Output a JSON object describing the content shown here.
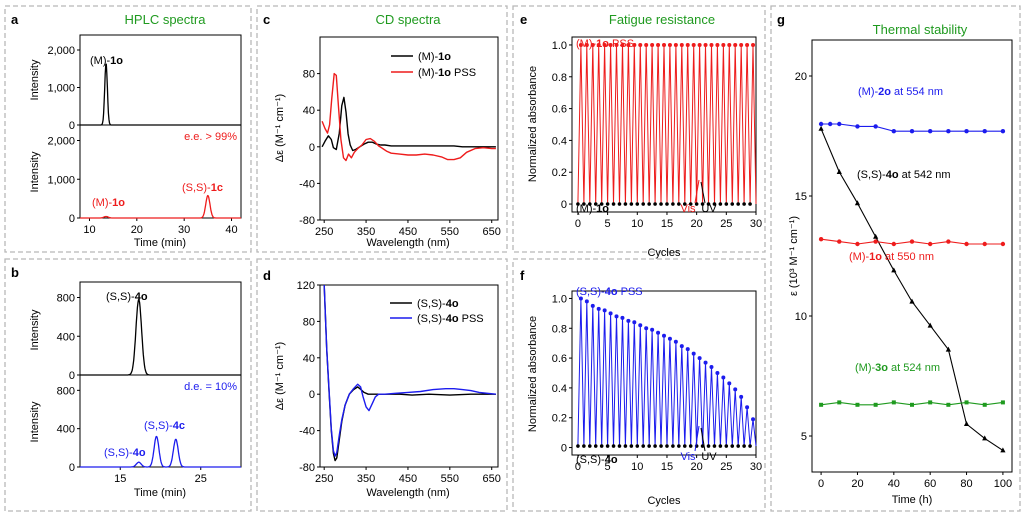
{
  "colors": {
    "black": "#000000",
    "red": "#ee1c1c",
    "blue": "#1c1cee",
    "green": "#1f9a1f"
  },
  "panels": {
    "a": {
      "label": "a",
      "title": "HPLC spectra",
      "top": {
        "ylabel": "Intensity",
        "yticks": [
          "0",
          "1,000",
          "2,000"
        ],
        "annotation": {
          "prefix": "(M)-",
          "bold": "1o"
        }
      },
      "bottom": {
        "ylabel": "Intensity",
        "yticks": [
          "0",
          "1,000",
          "2,000"
        ],
        "ee": "e.e. > 99%",
        "ann_left": {
          "prefix": "(M)-",
          "bold": "1o"
        },
        "ann_right": {
          "prefix": "(S,S)-",
          "bold": "1c"
        }
      },
      "xlabel": "Time (min)",
      "xticks": [
        "10",
        "20",
        "30",
        "40"
      ]
    },
    "b": {
      "label": "b",
      "top": {
        "ylabel": "Intensity",
        "yticks": [
          "0",
          "400",
          "800"
        ],
        "annotation": {
          "prefix": "(S,S)-",
          "bold": "4o"
        }
      },
      "bottom": {
        "ylabel": "Intensity",
        "yticks": [
          "0",
          "400",
          "800"
        ],
        "de": "d.e. = 10%",
        "ann_left": {
          "prefix": "(S,S)-",
          "bold": "4o"
        },
        "ann_right": {
          "prefix": "(S,S)-",
          "bold": "4c"
        }
      },
      "xlabel": "Time (min)",
      "xticks": [
        "15",
        "25"
      ]
    },
    "c": {
      "label": "c",
      "title": "CD spectra",
      "ylabel": "Δε (M⁻¹ cm⁻¹)",
      "xlabel": "Wavelength (nm)",
      "yticks": [
        "-80",
        "-40",
        "0",
        "40",
        "80"
      ],
      "xticks": [
        "250",
        "350",
        "450",
        "550",
        "650"
      ],
      "legend": [
        {
          "prefix": "(M)-",
          "bold": "1o",
          "suffix": ""
        },
        {
          "prefix": "(M)-",
          "bold": "1o",
          "suffix": " PSS"
        }
      ]
    },
    "d": {
      "label": "d",
      "ylabel": "Δε (M⁻¹ cm⁻¹)",
      "xlabel": "Wavelength (nm)",
      "yticks": [
        "-80",
        "-40",
        "0",
        "40",
        "80",
        "120"
      ],
      "xticks": [
        "250",
        "350",
        "450",
        "550",
        "650"
      ],
      "legend": [
        {
          "prefix": "(S,S)-",
          "bold": "4o",
          "suffix": ""
        },
        {
          "prefix": "(S,S)-",
          "bold": "4o",
          "suffix": " PSS"
        }
      ]
    },
    "e": {
      "label": "e",
      "title": "Fatigue resistance",
      "ylabel": "Normalized absorbance",
      "xlabel": "Cycles",
      "yticks": [
        "0",
        "0.2",
        "0.4",
        "0.6",
        "0.8",
        "1.0"
      ],
      "xticks": [
        "0",
        "5",
        "10",
        "15",
        "20",
        "25",
        "30"
      ],
      "ann_top": {
        "prefix": "(M)-",
        "bold": "1o",
        "suffix": " PSS"
      },
      "ann_bottom": {
        "prefix": "(M)-",
        "bold": "1o",
        "suffix": ""
      },
      "vis": "Vis",
      "uv": "UV"
    },
    "f": {
      "label": "f",
      "ylabel": "Normalized absorbance",
      "xlabel": "Cycles",
      "yticks": [
        "0",
        "0.2",
        "0.4",
        "0.6",
        "0.8",
        "1.0"
      ],
      "xticks": [
        "0",
        "5",
        "10",
        "15",
        "20",
        "25",
        "30"
      ],
      "ann_top": {
        "prefix": "(S,S)-",
        "bold": "4o",
        "suffix": " PSS"
      },
      "ann_bottom": {
        "prefix": "(S,S)-",
        "bold": "4o",
        "suffix": ""
      },
      "vis": "Vis",
      "uv": "UV"
    },
    "g": {
      "label": "g",
      "title": "Thermal stability",
      "ylabel": "ε (10³ M⁻¹ cm⁻¹)",
      "xlabel": "Time (h)",
      "yticks": [
        "5",
        "10",
        "15",
        "20"
      ],
      "xticks": [
        "0",
        "20",
        "40",
        "60",
        "80",
        "100"
      ],
      "labels": [
        {
          "prefix": "(M)-",
          "bold": "2o",
          "suffix": " at 554 nm"
        },
        {
          "prefix": "(S,S)-",
          "bold": "4o",
          "suffix": " at 542 nm"
        },
        {
          "prefix": "(M)-",
          "bold": "1o",
          "suffix": " at 550 nm"
        },
        {
          "prefix": "(M)-",
          "bold": "3o",
          "suffix": " at 524 nm"
        }
      ]
    }
  },
  "chart_data": [
    {
      "panel": "a",
      "type": "line",
      "title": "HPLC spectra",
      "xlabel": "Time (min)",
      "ylabel": "Intensity",
      "xlim": [
        8,
        42
      ],
      "ylim": [
        0,
        2400
      ],
      "series": [
        {
          "name": "(M)-1o",
          "color": "#000000",
          "peaks": [
            {
              "x": 13.5,
              "y": 1650
            }
          ]
        }
      ]
    },
    {
      "panel": "a",
      "type": "line",
      "xlabel": "Time (min)",
      "ylabel": "Intensity",
      "xlim": [
        8,
        42
      ],
      "ylim": [
        0,
        2400
      ],
      "series": [
        {
          "name": "(M)-1o",
          "color": "#ee1c1c",
          "peaks": [
            {
              "x": 13.5,
              "y": 40
            },
            {
              "x": 35.0,
              "y": 580
            }
          ]
        }
      ]
    },
    {
      "panel": "b",
      "type": "line",
      "xlabel": "Time (min)",
      "ylabel": "Intensity",
      "xlim": [
        10,
        30
      ],
      "ylim": [
        0,
        960
      ],
      "series": [
        {
          "name": "(S,S)-4o",
          "color": "#000000",
          "peaks": [
            {
              "x": 17.3,
              "y": 780
            }
          ]
        }
      ]
    },
    {
      "panel": "b",
      "type": "line",
      "xlabel": "Time (min)",
      "ylabel": "Intensity",
      "xlim": [
        10,
        30
      ],
      "ylim": [
        0,
        960
      ],
      "series": [
        {
          "name": "(S,S)-4o",
          "color": "#1c1cee",
          "peaks": [
            {
              "x": 17.3,
              "y": 50
            },
            {
              "x": 19.5,
              "y": 320
            },
            {
              "x": 21.9,
              "y": 290
            }
          ]
        }
      ]
    },
    {
      "panel": "c",
      "type": "line",
      "xlabel": "Wavelength (nm)",
      "ylabel": "Δε (M⁻¹ cm⁻¹)",
      "xlim": [
        240,
        665
      ],
      "ylim": [
        -80,
        120
      ],
      "series": [
        {
          "name": "(M)-1o",
          "color": "#000000",
          "x": [
            245,
            252,
            260,
            267,
            272,
            279,
            286,
            292,
            297,
            302,
            307,
            312,
            318,
            325,
            335,
            345,
            355,
            365,
            375,
            385,
            395,
            410,
            425,
            440,
            460,
            480,
            500,
            520,
            540,
            560,
            580,
            600,
            620,
            640,
            660
          ],
          "y": [
            0,
            6,
            12,
            8,
            -1,
            -3,
            15,
            45,
            54,
            38,
            14,
            2,
            -4,
            -3,
            0,
            3,
            5,
            5,
            3,
            2,
            2,
            1,
            1,
            1,
            1,
            1,
            1,
            1,
            1,
            1,
            0,
            0,
            0,
            0,
            0
          ]
        },
        {
          "name": "(M)-1o PSS",
          "color": "#ee1c1c",
          "x": [
            245,
            252,
            258,
            263,
            268,
            274,
            279,
            284,
            290,
            296,
            302,
            308,
            315,
            322,
            330,
            340,
            350,
            360,
            370,
            380,
            390,
            400,
            410,
            430,
            450,
            470,
            490,
            510,
            530,
            545,
            560,
            575,
            590,
            610,
            630,
            650,
            660
          ],
          "y": [
            28,
            20,
            15,
            24,
            52,
            80,
            78,
            45,
            8,
            -12,
            -15,
            -8,
            -12,
            -6,
            -2,
            2,
            8,
            9,
            6,
            1,
            -2,
            -5,
            -7,
            -8,
            -9,
            -9,
            -8,
            -9,
            -11,
            -14,
            -14,
            -12,
            -6,
            -2,
            -1,
            -2,
            -2
          ]
        }
      ]
    },
    {
      "panel": "d",
      "type": "line",
      "xlabel": "Wavelength (nm)",
      "ylabel": "Δε (M⁻¹ cm⁻¹)",
      "xlim": [
        240,
        665
      ],
      "ylim": [
        -80,
        120
      ],
      "series": [
        {
          "name": "(S,S)-4o",
          "color": "#000000",
          "x": [
            250,
            256,
            262,
            267,
            272,
            276,
            280,
            286,
            292,
            300,
            310,
            320,
            330,
            338,
            345,
            355,
            365,
            380,
            400,
            430,
            460,
            500,
            550,
            600,
            650,
            660
          ],
          "y": [
            120,
            50,
            0,
            -40,
            -65,
            -73,
            -70,
            -50,
            -30,
            -12,
            0,
            5,
            8,
            5,
            2,
            0,
            0,
            0,
            0,
            0,
            -1,
            0,
            -1,
            0,
            0,
            0
          ]
        },
        {
          "name": "(S,S)-4o PSS",
          "color": "#1c1cee",
          "x": [
            250,
            256,
            262,
            267,
            272,
            276,
            280,
            286,
            292,
            300,
            310,
            320,
            330,
            337,
            343,
            350,
            357,
            365,
            372,
            380,
            395,
            420,
            450,
            480,
            510,
            540,
            560,
            580,
            600,
            620,
            640,
            660
          ],
          "y": [
            120,
            50,
            2,
            -38,
            -62,
            -68,
            -64,
            -45,
            -28,
            -12,
            0,
            6,
            11,
            8,
            -3,
            -14,
            -18,
            -10,
            -3,
            0,
            0,
            1,
            2,
            3,
            5,
            6,
            6,
            5,
            4,
            2,
            1,
            0
          ]
        }
      ]
    },
    {
      "panel": "e",
      "type": "line",
      "xlabel": "Cycles",
      "ylabel": "Normalized absorbance",
      "xlim": [
        -1,
        30
      ],
      "ylim": [
        -0.05,
        1.05
      ],
      "series": [
        {
          "name": "(M)-1o PSS",
          "color": "#ee1c1c",
          "pss_values": [
            1.0,
            1.0,
            1.0,
            1.0,
            1.0,
            1.0,
            1.0,
            1.0,
            1.0,
            1.0,
            1.0,
            1.0,
            1.0,
            1.0,
            1.0,
            1.0,
            1.0,
            1.0,
            1.0,
            1.0,
            1.0,
            1.0,
            1.0,
            1.0,
            1.0,
            1.0,
            1.0,
            1.0,
            1.0,
            1.0
          ]
        },
        {
          "name": "(M)-1o",
          "color": "#000000",
          "open_values": [
            0,
            0,
            0,
            0,
            0,
            0,
            0,
            0,
            0,
            0,
            0,
            0,
            0,
            0,
            0,
            0,
            0,
            0,
            0,
            0,
            0,
            0,
            0,
            0,
            0,
            0,
            0,
            0,
            0,
            0
          ]
        }
      ]
    },
    {
      "panel": "f",
      "type": "line",
      "xlabel": "Cycles",
      "ylabel": "Normalized absorbance",
      "xlim": [
        -1,
        30
      ],
      "ylim": [
        -0.05,
        1.05
      ],
      "series": [
        {
          "name": "(S,S)-4o PSS",
          "color": "#1c1cee",
          "pss_values": [
            1.0,
            0.98,
            0.95,
            0.93,
            0.92,
            0.9,
            0.88,
            0.87,
            0.85,
            0.84,
            0.82,
            0.8,
            0.79,
            0.77,
            0.75,
            0.73,
            0.71,
            0.68,
            0.66,
            0.63,
            0.6,
            0.57,
            0.54,
            0.5,
            0.47,
            0.43,
            0.39,
            0.34,
            0.27,
            0.19
          ]
        },
        {
          "name": "(S,S)-4o",
          "color": "#000000",
          "open_values": [
            0.01,
            0.01,
            0.01,
            0.01,
            0.01,
            0.01,
            0.01,
            0.01,
            0.01,
            0.01,
            0.01,
            0.01,
            0.01,
            0.01,
            0.01,
            0.01,
            0.01,
            0.01,
            0.01,
            0.01,
            0.01,
            0.01,
            0.01,
            0.01,
            0.01,
            0.01,
            0.01,
            0.01,
            0.01,
            0.01
          ]
        }
      ]
    },
    {
      "panel": "g",
      "type": "line",
      "title": "Thermal stability",
      "xlabel": "Time (h)",
      "ylabel": "ε (10³ M⁻¹ cm⁻¹)",
      "xlim": [
        -5,
        105
      ],
      "ylim": [
        3.5,
        21.5
      ],
      "series": [
        {
          "name": "(M)-2o at 554 nm",
          "color": "#1c1cee",
          "x": [
            0,
            5,
            10,
            20,
            30,
            40,
            50,
            60,
            70,
            80,
            90,
            100
          ],
          "y": [
            18.0,
            18.0,
            18.0,
            17.9,
            17.9,
            17.7,
            17.7,
            17.7,
            17.7,
            17.7,
            17.7,
            17.7
          ]
        },
        {
          "name": "(S,S)-4o at 542 nm",
          "color": "#000000",
          "x": [
            0,
            10,
            20,
            30,
            40,
            50,
            60,
            70,
            80,
            90,
            100
          ],
          "y": [
            17.8,
            16.0,
            14.7,
            13.3,
            11.9,
            10.6,
            9.6,
            8.6,
            5.5,
            4.9,
            4.4
          ]
        },
        {
          "name": "(M)-1o at 550 nm",
          "color": "#ee1c1c",
          "x": [
            0,
            10,
            20,
            30,
            40,
            50,
            60,
            70,
            80,
            90,
            100
          ],
          "y": [
            13.2,
            13.1,
            13.0,
            13.1,
            13.0,
            13.1,
            13.0,
            13.1,
            13.0,
            13.0,
            13.0
          ]
        },
        {
          "name": "(M)-3o at 524 nm",
          "color": "#1f9a1f",
          "x": [
            0,
            10,
            20,
            30,
            40,
            50,
            60,
            70,
            80,
            90,
            100
          ],
          "y": [
            6.3,
            6.4,
            6.3,
            6.3,
            6.4,
            6.3,
            6.4,
            6.3,
            6.4,
            6.3,
            6.4
          ]
        }
      ]
    }
  ]
}
